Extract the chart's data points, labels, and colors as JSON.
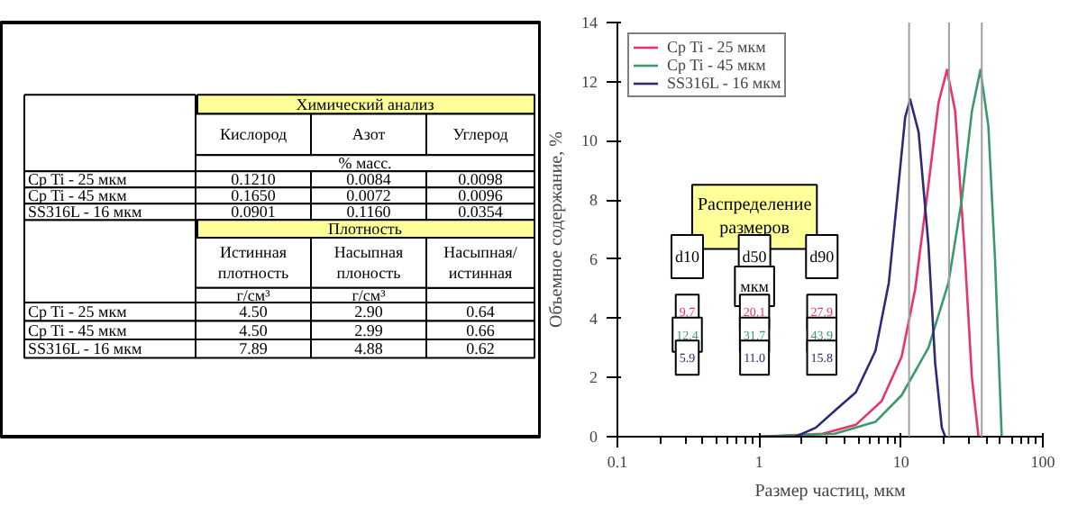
{
  "chart_data": [
    {
      "type": "other",
      "annotations": [
        "Химический анализ",
        "Кислород",
        "Азот",
        "Углерод",
        "% масс.",
        "Cp Ti - 25 мкм",
        "0.1210",
        "0.0084",
        "0.0098",
        "Cp Ti - 45 мкм",
        "0.1650",
        "0.0072",
        "0.0096",
        "SS316L - 16 мкм",
        "0.0901",
        "0.1160",
        "0.0354",
        "Плотность",
        "Истинная\nплотность",
        "Насыпная\nплоность",
        "Насыпная/\nистинная",
        "г/см³",
        "г/см³",
        "Cp Ti - 25 мкм",
        "4.50",
        "2.90",
        "0.64",
        "Cp Ti - 45 мкм",
        "4.50",
        "2.99",
        "0.66",
        "SS316L - 16 мкм",
        "7.89",
        "4.88",
        "0.62"
      ]
    },
    {
      "type": "line",
      "xlabel": "Размер частиц, мкм",
      "ylabel": "Объемное содержание, %",
      "log": "x",
      "xlim": [
        0.1,
        100
      ],
      "xticks": [
        0.1,
        1,
        10,
        100
      ],
      "ylim": [
        0,
        14
      ],
      "yticks": [
        0,
        2,
        4,
        6,
        8,
        10,
        12,
        14
      ],
      "grid": false,
      "legend": "top left",
      "marker": "none",
      "line_style": "solid",
      "series": [
        {
          "name": "Cp Ti - 25 мкм",
          "color": "#e8336e",
          "x": [
            1,
            2.8,
            4.8,
            7.3,
            10.1,
            12.6,
            15.6,
            18.4,
            21.1,
            24.1,
            28.3,
            31.6,
            35.2
          ],
          "values": [
            0,
            0.1,
            0.4,
            1.2,
            2.7,
            5,
            8.5,
            11.3,
            12.4,
            11,
            6,
            2,
            0
          ]
        },
        {
          "name": "Cp Ti - 45 мкм",
          "color": "#3a9a6a",
          "x": [
            1,
            3.4,
            6.6,
            10.1,
            15.6,
            21.6,
            26.8,
            31.6,
            36.3,
            41.3,
            46,
            51.3
          ],
          "values": [
            0,
            0.1,
            0.5,
            1.4,
            3,
            5.2,
            8,
            11,
            12.4,
            10.5,
            6,
            0
          ]
        },
        {
          "name": "SS316L - 16 мкм",
          "color": "#2b2b7a",
          "x": [
            1,
            1.8,
            2.5,
            3.45,
            4.8,
            6.6,
            8.2,
            9.6,
            10.7,
            11.6,
            13.3,
            15.6,
            17.4,
            19.4,
            20.5
          ],
          "values": [
            0,
            0,
            0.3,
            0.9,
            1.5,
            2.9,
            5.2,
            8.5,
            10.8,
            11.4,
            10.3,
            6.5,
            2.5,
            0.3,
            0
          ]
        }
      ],
      "ref_lines": [
        {
          "axis": "x",
          "value": 11.4,
          "color": "#a0a0a0"
        },
        {
          "axis": "x",
          "value": 21.8,
          "color": "#a0a0a0"
        },
        {
          "axis": "x",
          "value": 37.1,
          "color": "#a0a0a0"
        }
      ],
      "annotations": [
        "Распределение\nразмеров",
        "d10",
        "d50",
        "d90",
        "мкм",
        "9.7",
        "20.1",
        "27.9",
        "12.4",
        "31.7",
        "43.9",
        "5.9",
        "11.0",
        "15.8"
      ]
    }
  ]
}
